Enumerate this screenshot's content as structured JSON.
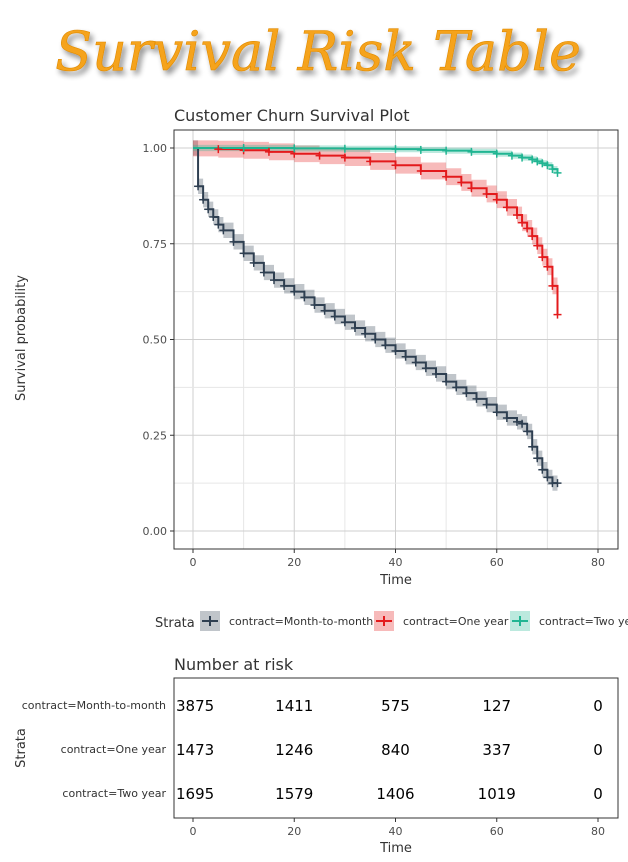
{
  "banner": {
    "title": "Survival Risk Table",
    "color": "#F5A31A"
  },
  "chart_data": [
    {
      "type": "line",
      "title": "Customer Churn Survival Plot",
      "xlabel": "Time",
      "ylabel": "Survival probability",
      "xlim": [
        0,
        80
      ],
      "ylim": [
        0,
        1
      ],
      "x_ticks": [
        0,
        20,
        40,
        60,
        80
      ],
      "y_ticks": [
        "0.00",
        "0.25",
        "0.50",
        "0.75",
        "1.00"
      ],
      "grid": true,
      "legend_title": "Strata",
      "legend_position": "bottom",
      "series": [
        {
          "name": "contract=Month-to-month",
          "color": "#2E3F51",
          "x": [
            0,
            1,
            2,
            3,
            4,
            5,
            6,
            8,
            10,
            12,
            14,
            16,
            18,
            20,
            22,
            24,
            26,
            28,
            30,
            32,
            34,
            36,
            38,
            40,
            42,
            44,
            46,
            48,
            50,
            52,
            54,
            56,
            58,
            60,
            62,
            64,
            65,
            66,
            67,
            68,
            69,
            70,
            71,
            72
          ],
          "y": [
            1.0,
            0.9,
            0.865,
            0.84,
            0.82,
            0.8,
            0.785,
            0.755,
            0.725,
            0.7,
            0.675,
            0.655,
            0.64,
            0.625,
            0.61,
            0.59,
            0.575,
            0.56,
            0.545,
            0.53,
            0.515,
            0.5,
            0.485,
            0.47,
            0.455,
            0.44,
            0.425,
            0.41,
            0.39,
            0.375,
            0.36,
            0.345,
            0.33,
            0.31,
            0.295,
            0.285,
            0.28,
            0.26,
            0.22,
            0.19,
            0.16,
            0.14,
            0.125,
            0.125
          ],
          "ci_half_width": 0.02
        },
        {
          "name": "contract=One year",
          "color": "#E31A1C",
          "x": [
            0,
            5,
            10,
            15,
            20,
            25,
            30,
            35,
            40,
            45,
            50,
            53,
            55,
            58,
            60,
            62,
            64,
            65,
            66,
            67,
            68,
            69,
            70,
            71,
            72
          ],
          "y": [
            1.0,
            0.997,
            0.994,
            0.99,
            0.985,
            0.98,
            0.975,
            0.965,
            0.955,
            0.94,
            0.925,
            0.91,
            0.895,
            0.88,
            0.865,
            0.845,
            0.825,
            0.805,
            0.79,
            0.77,
            0.745,
            0.715,
            0.69,
            0.64,
            0.565
          ],
          "ci_half_width": 0.022
        },
        {
          "name": "contract=Two year",
          "color": "#20B592",
          "x": [
            0,
            10,
            20,
            30,
            40,
            45,
            50,
            55,
            60,
            63,
            65,
            67,
            68,
            69,
            70,
            71,
            72
          ],
          "y": [
            1.0,
            1.0,
            0.999,
            0.998,
            0.997,
            0.995,
            0.993,
            0.99,
            0.985,
            0.98,
            0.975,
            0.97,
            0.965,
            0.96,
            0.955,
            0.945,
            0.935
          ],
          "ci_half_width": 0.008
        }
      ]
    },
    {
      "type": "table",
      "title": "Number at risk",
      "xlabel": "Time",
      "ylabel": "Strata",
      "x_ticks": [
        0,
        20,
        40,
        60,
        80
      ],
      "rows": [
        {
          "label": "contract=Month-to-month",
          "values": [
            3875,
            1411,
            575,
            127,
            0
          ]
        },
        {
          "label": "contract=One year",
          "values": [
            1473,
            1246,
            840,
            337,
            0
          ]
        },
        {
          "label": "contract=Two year",
          "values": [
            1695,
            1579,
            1406,
            1019,
            0
          ]
        }
      ]
    }
  ]
}
